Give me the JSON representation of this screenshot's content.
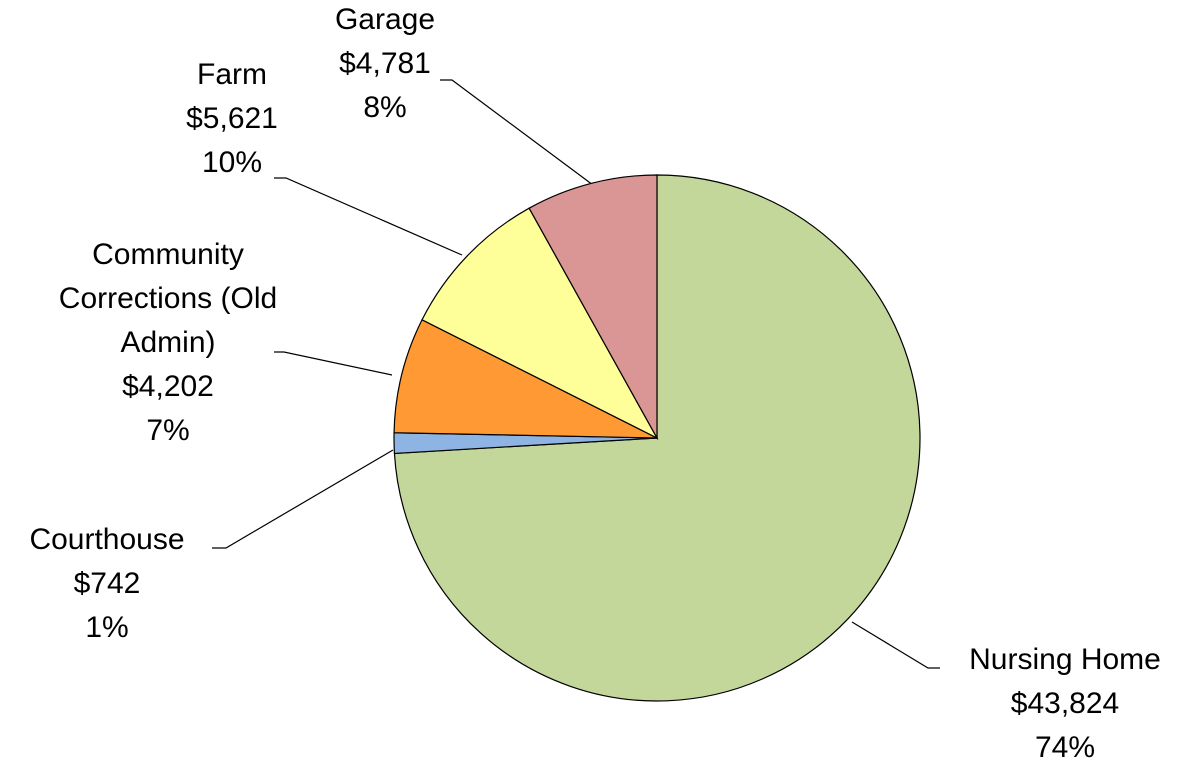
{
  "chart_data": {
    "type": "pie",
    "categories": [
      "Nursing Home",
      "Courthouse",
      "Community Corrections (Old Admin)",
      "Farm",
      "Garage"
    ],
    "values": [
      43824,
      742,
      4202,
      5621,
      4781
    ],
    "value_labels": [
      "$43,824",
      "$742",
      "$4,202",
      "$5,621",
      "$4,781"
    ],
    "percent_labels": [
      "74%",
      "1%",
      "7%",
      "10%",
      "8%"
    ],
    "colors": [
      "#c4d79b",
      "#8db4e2",
      "#ff9933",
      "#ffff99",
      "#d99694"
    ]
  }
}
